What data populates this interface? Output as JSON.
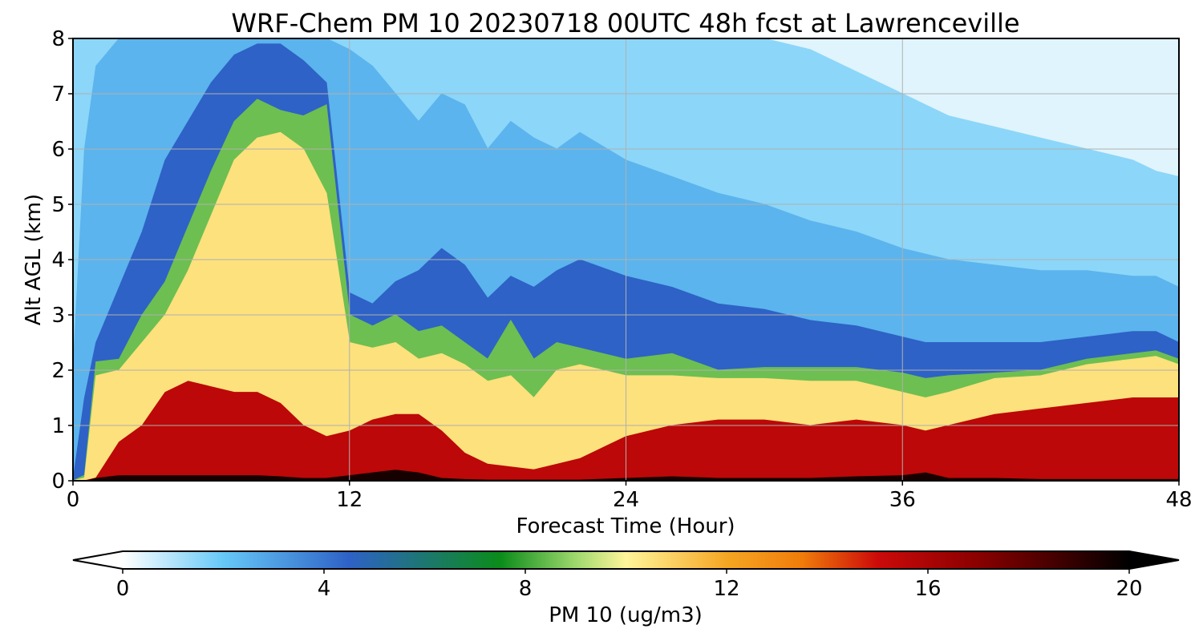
{
  "chart_data": {
    "type": "heatmap",
    "title": "WRF-Chem PM 10  20230718 00UTC 48h fcst at Lawrenceville",
    "xlabel": "Forecast Time (Hour)",
    "ylabel": "Alt AGL (km)",
    "xlim": [
      0,
      48
    ],
    "ylim": [
      0,
      8
    ],
    "xticks": [
      0,
      12,
      24,
      36,
      48
    ],
    "yticks": [
      0,
      1,
      2,
      3,
      4,
      5,
      6,
      7,
      8
    ],
    "grid": true,
    "colorbar": {
      "label": "PM 10  (ug/m3)",
      "range": [
        0,
        20
      ],
      "ticks": [
        0,
        4,
        8,
        12,
        16,
        20
      ],
      "extend": "both",
      "orientation": "horizontal",
      "placement": "bottom",
      "color_stops": [
        {
          "value": 0,
          "color": "#ffffff"
        },
        {
          "value": 2,
          "color": "#66c8f7"
        },
        {
          "value": 4.5,
          "color": "#2e62c6"
        },
        {
          "value": 7.5,
          "color": "#0b8c1a"
        },
        {
          "value": 9,
          "color": "#9ed86d"
        },
        {
          "value": 10,
          "color": "#fff59a"
        },
        {
          "value": 12,
          "color": "#f5a623"
        },
        {
          "value": 13.5,
          "color": "#f07c0a"
        },
        {
          "value": 15,
          "color": "#cc0a0a"
        },
        {
          "value": 17,
          "color": "#8a0000"
        },
        {
          "value": 20,
          "color": "#000000"
        }
      ]
    },
    "x": [
      0,
      0.5,
      1,
      2,
      3,
      4,
      5,
      6,
      7,
      8,
      9,
      10,
      11,
      12,
      13,
      14,
      15,
      16,
      17,
      18,
      19,
      20,
      21,
      22,
      24,
      26,
      28,
      30,
      32,
      34,
      36,
      37,
      38,
      40,
      42,
      44,
      46,
      47,
      48
    ],
    "surface_layer": {
      "layer_top_km": [
        0,
        0,
        0.05,
        0.1,
        0.1,
        0.1,
        0.1,
        0.1,
        0.1,
        0.1,
        0.08,
        0.05,
        0.05,
        0.1,
        0.15,
        0.2,
        0.15,
        0.05,
        0.03,
        0.02,
        0.02,
        0.02,
        0.02,
        0.02,
        0.05,
        0.08,
        0.05,
        0.05,
        0.05,
        0.08,
        0.1,
        0.15,
        0.05,
        0.05,
        0.03,
        0.03,
        0.03,
        0.03,
        0.03
      ],
      "value": 19.5
    },
    "series": [
      {
        "name": "15",
        "heights_km": [
          0,
          0,
          0.05,
          0.7,
          1.0,
          1.6,
          1.8,
          1.7,
          1.6,
          1.6,
          1.4,
          1.0,
          0.8,
          0.9,
          1.1,
          1.2,
          1.2,
          0.9,
          0.5,
          0.3,
          0.25,
          0.2,
          0.3,
          0.4,
          0.8,
          1.0,
          1.1,
          1.1,
          1.0,
          1.1,
          1.0,
          0.9,
          1.0,
          1.2,
          1.3,
          1.4,
          1.5,
          1.5,
          1.5
        ]
      },
      {
        "name": "10",
        "heights_km": [
          0,
          0.05,
          1.9,
          2.0,
          2.5,
          3.0,
          3.8,
          4.8,
          5.8,
          6.2,
          6.3,
          6.0,
          5.2,
          2.5,
          2.4,
          2.5,
          2.2,
          2.3,
          2.1,
          1.8,
          1.9,
          1.5,
          2.0,
          2.1,
          1.9,
          1.9,
          1.85,
          1.85,
          1.8,
          1.8,
          1.6,
          1.5,
          1.6,
          1.85,
          1.9,
          2.1,
          2.2,
          2.25,
          2.1
        ]
      },
      {
        "name": "8",
        "heights_km": [
          0,
          0.1,
          2.15,
          2.2,
          3.0,
          3.6,
          4.6,
          5.6,
          6.5,
          6.9,
          6.7,
          6.6,
          6.8,
          3.0,
          2.8,
          3.0,
          2.7,
          2.8,
          2.5,
          2.2,
          2.9,
          2.2,
          2.5,
          2.4,
          2.2,
          2.3,
          2.0,
          2.05,
          2.05,
          2.05,
          1.95,
          1.85,
          1.9,
          1.95,
          2.0,
          2.2,
          2.3,
          2.35,
          2.2
        ]
      },
      {
        "name": "4",
        "heights_km": [
          0,
          1.5,
          2.5,
          3.5,
          4.5,
          5.8,
          6.5,
          7.2,
          7.7,
          7.9,
          7.9,
          7.6,
          7.2,
          3.4,
          3.2,
          3.6,
          3.8,
          4.2,
          3.9,
          3.3,
          3.7,
          3.5,
          3.8,
          4.0,
          3.7,
          3.5,
          3.2,
          3.1,
          2.9,
          2.8,
          2.6,
          2.5,
          2.5,
          2.5,
          2.5,
          2.6,
          2.7,
          2.7,
          2.5
        ]
      },
      {
        "name": "2",
        "heights_km": [
          2,
          6,
          7.5,
          8,
          8,
          8,
          8,
          8,
          8,
          8,
          8,
          8,
          8,
          7.8,
          7.5,
          7.0,
          6.5,
          7.0,
          6.8,
          6.0,
          6.5,
          6.2,
          6.0,
          6.3,
          5.8,
          5.5,
          5.2,
          5.0,
          4.7,
          4.5,
          4.2,
          4.1,
          4.0,
          3.9,
          3.8,
          3.8,
          3.7,
          3.7,
          3.5
        ]
      },
      {
        "name": "1",
        "heights_km": [
          8,
          8,
          8,
          8,
          8,
          8,
          8,
          8,
          8,
          8,
          8,
          8,
          8,
          8,
          8,
          8,
          8,
          8,
          8,
          8,
          8,
          8,
          8,
          8,
          8,
          8,
          8,
          8,
          7.8,
          7.4,
          7.0,
          6.8,
          6.6,
          6.4,
          6.2,
          6.0,
          5.8,
          5.6,
          5.5
        ]
      }
    ]
  }
}
